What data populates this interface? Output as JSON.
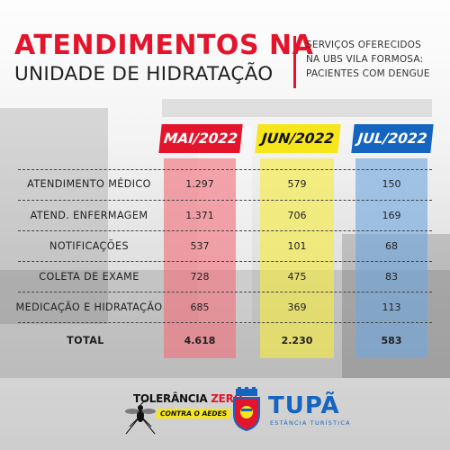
{
  "header": {
    "title_line1": "ATENDIMENTOS NA",
    "title_line2": "UNIDADE DE HIDRATAÇÃO",
    "subtitle_lines": [
      "SERVIÇOS OFERECIDOS",
      "NA UBS VILA FORMOSA:",
      "PACIENTES COM DENGUE"
    ]
  },
  "colors": {
    "accent_red": "#e3142b",
    "accent_yellow": "#f7e61b",
    "accent_blue": "#1565c0"
  },
  "table": {
    "columns": [
      "MAI/2022",
      "JUN/2022",
      "JUL/2022"
    ],
    "rows": [
      {
        "label": "ATENDIMENTO MÉDICO",
        "values": [
          "1.297",
          "579",
          "150"
        ]
      },
      {
        "label": "ATEND. ENFERMAGEM",
        "values": [
          "1.371",
          "706",
          "169"
        ]
      },
      {
        "label": "NOTIFICAÇÕES",
        "values": [
          "537",
          "101",
          "68"
        ]
      },
      {
        "label": "COLETA DE EXAME",
        "values": [
          "728",
          "475",
          "83"
        ]
      },
      {
        "label": "MEDICAÇÃO E HIDRATAÇÃO",
        "values": [
          "685",
          "369",
          "113"
        ]
      }
    ],
    "total": {
      "label": "TOTAL",
      "values": [
        "4.618",
        "2.230",
        "583"
      ]
    }
  },
  "footer": {
    "campaign_word1": "TOLERÂNCIA",
    "campaign_word2": "ZERO",
    "campaign_badge": "CONTRA O AEDES",
    "city_name": "TUPÃ",
    "city_tagline": "ESTÂNCIA TURÍSTICA"
  },
  "icons": {
    "mosquito": "mosquito-icon",
    "seal": "city-seal-icon"
  }
}
